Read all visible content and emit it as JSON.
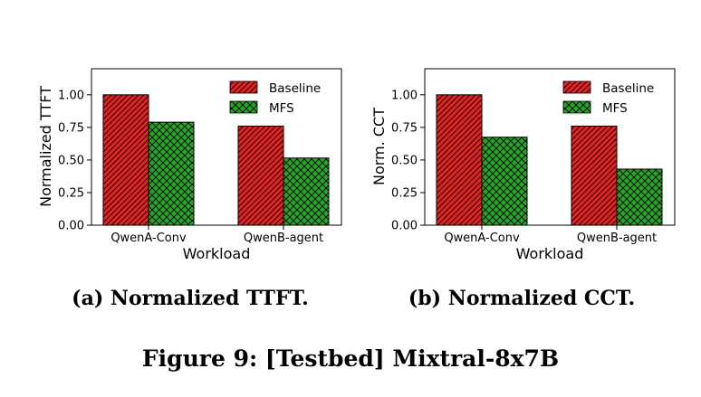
{
  "figure": {
    "caption": "Figure 9: [Testbed] Mixtral-8x7B"
  },
  "colors": {
    "baseline": "#d62728",
    "mfs": "#2ca02c"
  },
  "chart_data": [
    {
      "type": "bar",
      "caption": "(a) Normalized TTFT.",
      "categories": [
        "QwenA-Conv",
        "QwenB-agent"
      ],
      "xlabel": "Workload",
      "ylabel": "Normalized TTFT",
      "ylim": [
        0,
        1.2
      ],
      "yticks": [
        "0.00",
        "0.25",
        "0.50",
        "0.75",
        "1.00"
      ],
      "legend_position": "top-right",
      "series": [
        {
          "name": "Baseline",
          "values": [
            1.0,
            0.76
          ]
        },
        {
          "name": "MFS",
          "values": [
            0.79,
            0.515
          ]
        }
      ]
    },
    {
      "type": "bar",
      "caption": "(b) Normalized CCT.",
      "categories": [
        "QwenA-Conv",
        "QwenB-agent"
      ],
      "xlabel": "Workload",
      "ylabel": "Norm. CCT",
      "ylim": [
        0,
        1.2
      ],
      "yticks": [
        "0.00",
        "0.25",
        "0.50",
        "0.75",
        "1.00"
      ],
      "legend_position": "top-right",
      "series": [
        {
          "name": "Baseline",
          "values": [
            1.0,
            0.76
          ]
        },
        {
          "name": "MFS",
          "values": [
            0.675,
            0.43
          ]
        }
      ]
    }
  ]
}
